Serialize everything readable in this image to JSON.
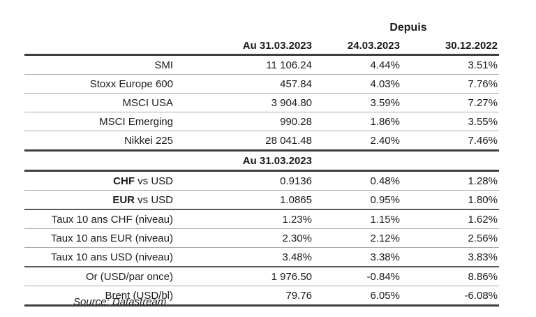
{
  "table": {
    "header": {
      "depuis_label": "Depuis",
      "col_value": "Au 31.03.2023",
      "col_since1": "24.03.2023",
      "col_since2": "30.12.2022"
    },
    "rows": [
      {
        "label_bold": "",
        "label": "SMI",
        "value": "11 106.24",
        "since1": "4.44%",
        "since2": "3.51%",
        "sep": "thin"
      },
      {
        "label_bold": "",
        "label": "Stoxx Europe 600",
        "value": "457.84",
        "since1": "4.03%",
        "since2": "7.76%",
        "sep": "thin"
      },
      {
        "label_bold": "",
        "label": "MSCI USA",
        "value": "3 904.80",
        "since1": "3.59%",
        "since2": "7.27%",
        "sep": "thin"
      },
      {
        "label_bold": "",
        "label": "MSCI Emerging",
        "value": "990.28",
        "since1": "1.86%",
        "since2": "3.55%",
        "sep": "thin"
      },
      {
        "label_bold": "",
        "label": "Nikkei 225",
        "value": "28 041.48",
        "since1": "2.40%",
        "since2": "7.46%",
        "sep": "thick"
      },
      {
        "type": "section",
        "label": "Au 31.03.2023",
        "sep": "thick"
      },
      {
        "label_bold": "CHF",
        "label": " vs USD",
        "value": "0.9136",
        "since1": "0.48%",
        "since2": "1.28%",
        "sep": "thin"
      },
      {
        "label_bold": "EUR",
        "label": " vs USD",
        "value": "1.0865",
        "since1": "0.95%",
        "since2": "1.80%",
        "sep": "medium"
      },
      {
        "label_bold": "",
        "label": "Taux 10 ans CHF (niveau)",
        "value": "1.23%",
        "since1": "1.15%",
        "since2": "1.62%",
        "sep": "thin"
      },
      {
        "label_bold": "",
        "label": "Taux 10 ans EUR (niveau)",
        "value": "2.30%",
        "since1": "2.12%",
        "since2": "2.56%",
        "sep": "thin"
      },
      {
        "label_bold": "",
        "label": "Taux 10 ans USD (niveau)",
        "value": "3.48%",
        "since1": "3.38%",
        "since2": "3.83%",
        "sep": "medium"
      },
      {
        "label_bold": "",
        "label": "Or (USD/par once)",
        "value": "1 976.50",
        "since1": "-0.84%",
        "since2": "8.86%",
        "sep": "thin"
      },
      {
        "label_bold": "",
        "label": "Brent (USD/bl)",
        "value": "79.76",
        "since1": "6.05%",
        "since2": "-6.08%",
        "sep": "thick"
      }
    ],
    "source": "Source: Datastream"
  }
}
